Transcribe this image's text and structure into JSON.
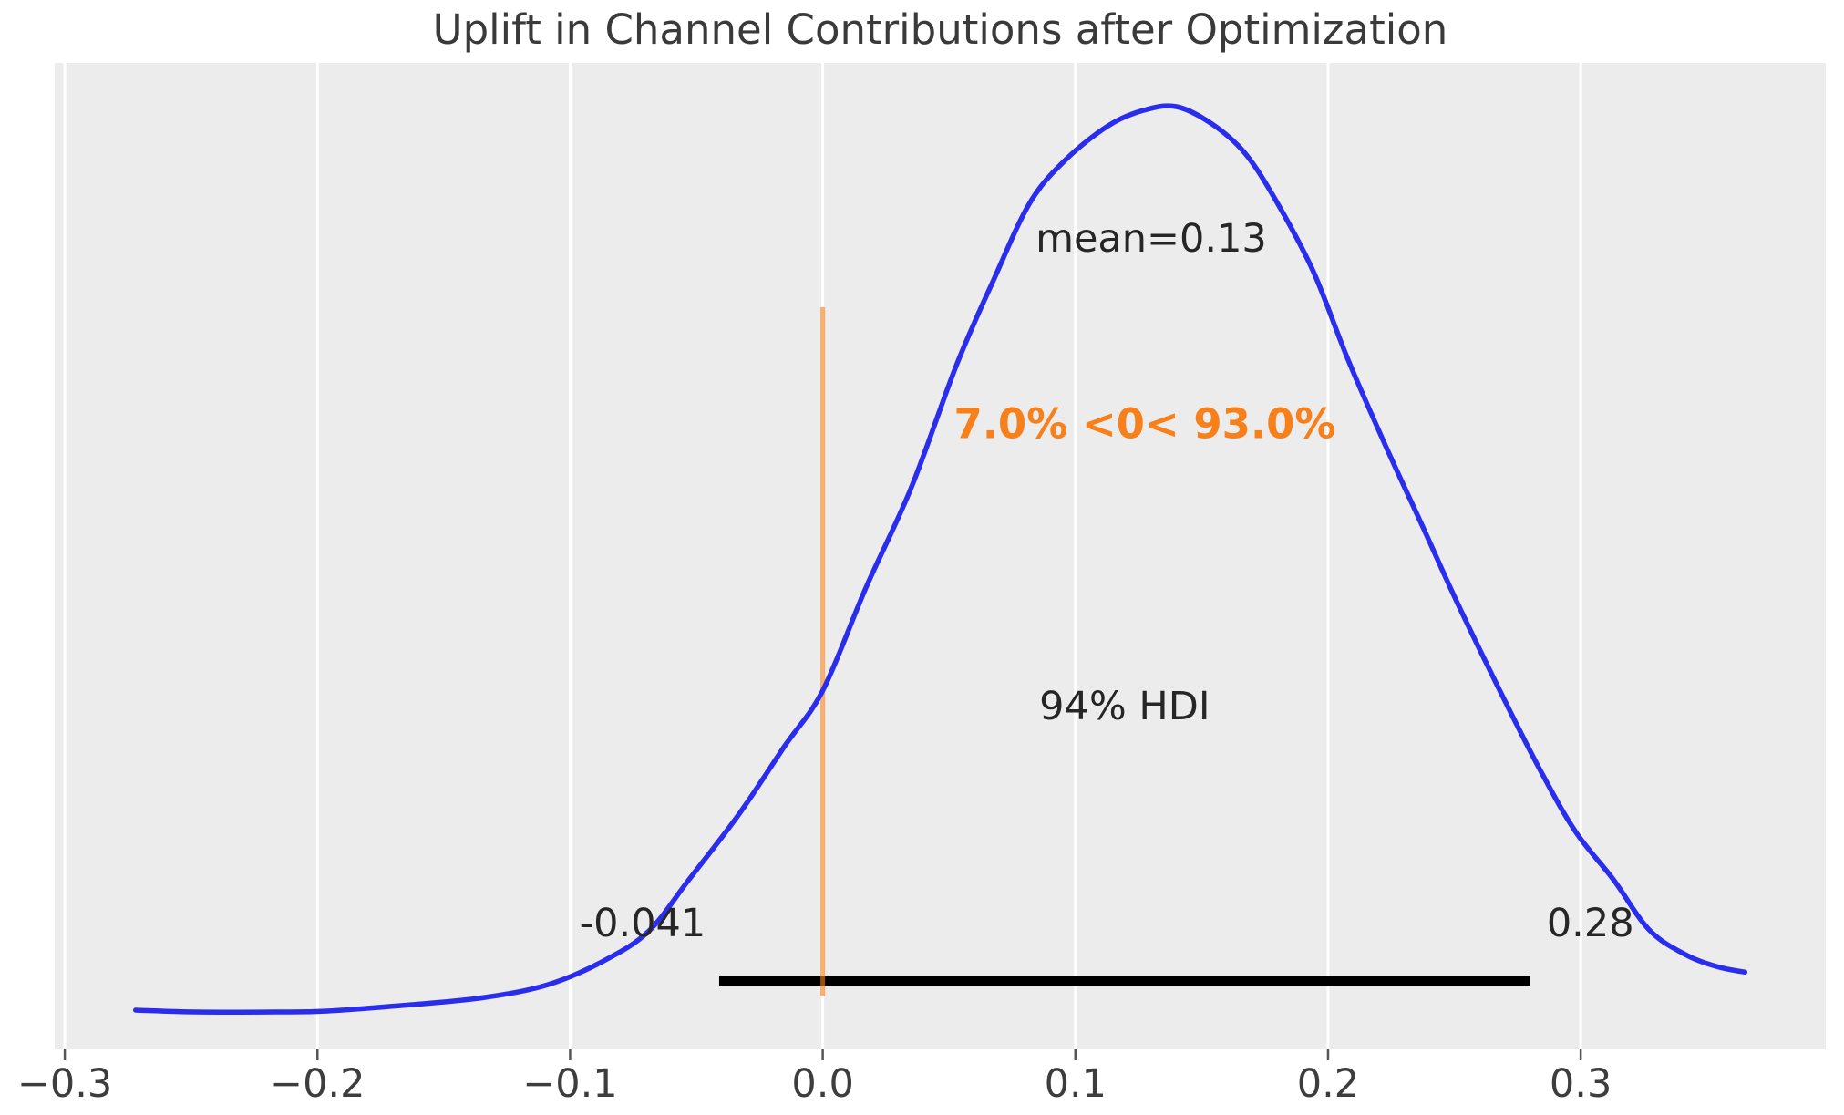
{
  "chart_data": {
    "type": "density",
    "subtype": "posterior_kde",
    "title": "Uplift in Channel Contributions after Optimization",
    "xlabel": "",
    "ylabel": "",
    "legend": "none",
    "grid": "vertical_white_lines",
    "panel_bg_color": "#ececec",
    "figure_bg_color": "#ffffff",
    "axes": {
      "xlim": [
        -0.304,
        0.397
      ],
      "ylim_density_normalized": [
        0.0,
        1.0
      ],
      "xticks": [
        {
          "value": -0.3,
          "label": "−0.3"
        },
        {
          "value": -0.2,
          "label": "−0.2"
        },
        {
          "value": -0.1,
          "label": "−0.1"
        },
        {
          "value": 0.0,
          "label": "0.0"
        },
        {
          "value": 0.1,
          "label": "0.1"
        },
        {
          "value": 0.2,
          "label": "0.2"
        },
        {
          "value": 0.3,
          "label": "0.3"
        }
      ],
      "yticks": []
    },
    "curve": {
      "name": "posterior-kde",
      "color": "#2a2eec",
      "points": [
        [
          -0.272,
          0.002
        ],
        [
          -0.248,
          0.0
        ],
        [
          -0.217,
          0.0
        ],
        [
          -0.196,
          0.001
        ],
        [
          -0.163,
          0.008
        ],
        [
          -0.134,
          0.016
        ],
        [
          -0.109,
          0.03
        ],
        [
          -0.087,
          0.056
        ],
        [
          -0.069,
          0.089
        ],
        [
          -0.053,
          0.146
        ],
        [
          -0.033,
          0.219
        ],
        [
          -0.015,
          0.294
        ],
        [
          0.0,
          0.355
        ],
        [
          0.017,
          0.468
        ],
        [
          0.035,
          0.579
        ],
        [
          0.053,
          0.715
        ],
        [
          0.068,
          0.811
        ],
        [
          0.082,
          0.894
        ],
        [
          0.096,
          0.941
        ],
        [
          0.113,
          0.979
        ],
        [
          0.127,
          0.996
        ],
        [
          0.14,
          1.0
        ],
        [
          0.154,
          0.981
        ],
        [
          0.167,
          0.949
        ],
        [
          0.179,
          0.898
        ],
        [
          0.194,
          0.819
        ],
        [
          0.208,
          0.72
        ],
        [
          0.223,
          0.624
        ],
        [
          0.237,
          0.539
        ],
        [
          0.251,
          0.453
        ],
        [
          0.268,
          0.355
        ],
        [
          0.284,
          0.267
        ],
        [
          0.298,
          0.199
        ],
        [
          0.313,
          0.146
        ],
        [
          0.327,
          0.091
        ],
        [
          0.341,
          0.064
        ],
        [
          0.354,
          0.05
        ],
        [
          0.365,
          0.044
        ]
      ]
    },
    "annotations": {
      "mean": {
        "value": 0.13,
        "label": "mean=0.13",
        "color": "#262626"
      },
      "ref_val": {
        "value": 0.0,
        "label": "7.0% <0< 93.0%",
        "pct_below": 7.0,
        "pct_above": 93.0,
        "color": "#f8801a",
        "line_opacity": 0.62
      },
      "hdi": {
        "prob": 0.94,
        "label": "94% HDI",
        "lower": -0.041,
        "upper": 0.28,
        "lower_label": "-0.041",
        "upper_label": "0.28",
        "line_color": "#000000",
        "label_color": "#262626"
      }
    }
  }
}
